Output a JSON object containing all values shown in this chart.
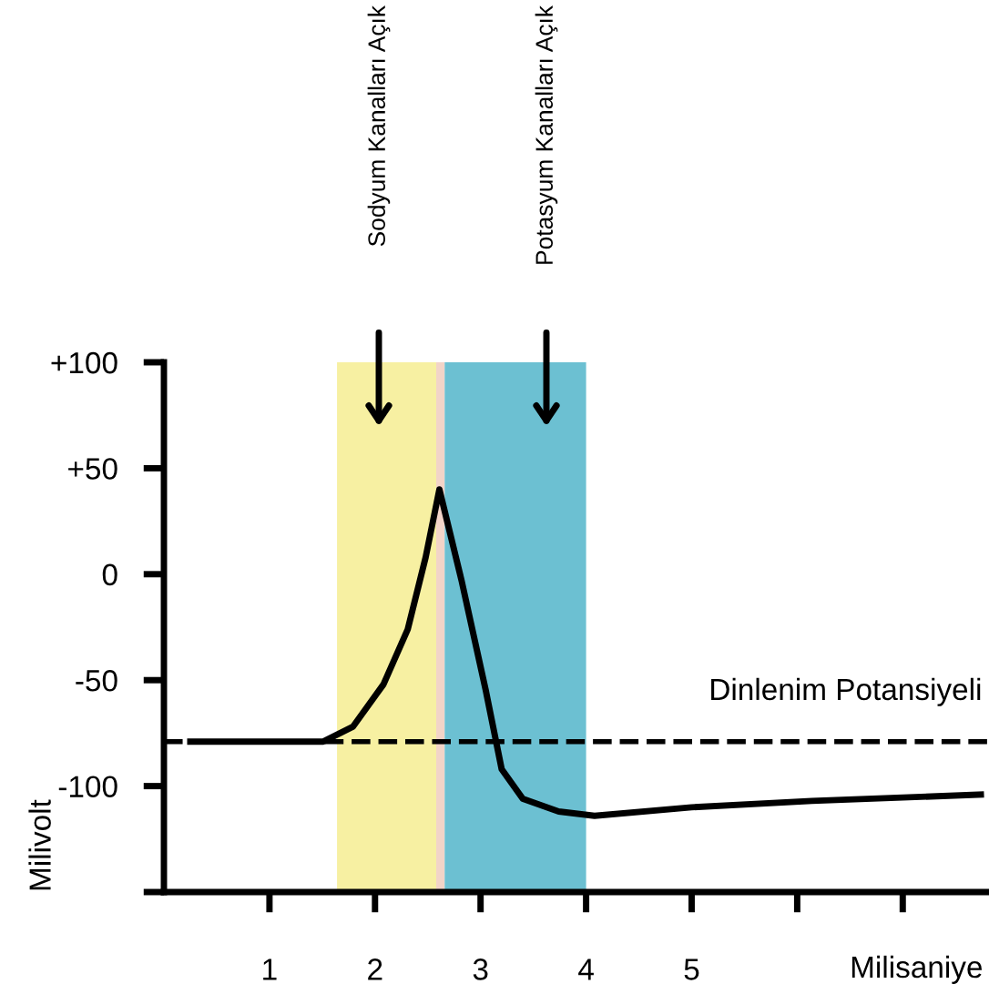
{
  "chart_data": {
    "type": "line",
    "xlabel": "Milisaniye",
    "ylabel": "Milivolt",
    "x": [
      0.25,
      1.51,
      1.79,
      2.08,
      2.31,
      2.48,
      2.61,
      2.82,
      3.05,
      3.2,
      3.4,
      3.74,
      4.08,
      5.0,
      6.14,
      7.74
    ],
    "series": [
      {
        "color": "#000000",
        "values": [
          -79,
          -79,
          -72,
          -52,
          -26,
          8,
          40,
          -3,
          -55,
          -92,
          -106,
          -112,
          -114,
          -110,
          -107,
          -104
        ]
      }
    ],
    "xlim": [
      0,
      7.8
    ],
    "ylim": [
      -150,
      100
    ],
    "xticks": [
      1,
      2,
      3,
      4,
      5,
      {
        "value": 6,
        "label": null
      },
      {
        "value": 7,
        "label": null
      }
    ],
    "yticks": [
      {
        "value": -150,
        "label": null
      },
      {
        "value": -100,
        "label": "-100"
      },
      {
        "value": -50,
        "label": "-50"
      },
      0,
      {
        "value": 50,
        "label": "+50"
      },
      {
        "value": 100,
        "label": "+100"
      }
    ],
    "bands": [
      {
        "axis": "x",
        "from": 1.64,
        "to": 2.58,
        "color": "#f7f0a2"
      },
      {
        "axis": "x",
        "from": 2.58,
        "to": 2.66,
        "color": "#f2d4c8"
      },
      {
        "axis": "x",
        "from": 2.66,
        "to": 4.0,
        "color": "#6cc0d2"
      }
    ],
    "ref_lines": [
      {
        "axis": "y",
        "value": -79,
        "label": "Dinlenim Potansiyeli",
        "line_style": "dashed",
        "color": "#000000"
      }
    ],
    "annotations": [
      "Sodyum Kanalları Açık",
      "Potasyum Kanalları Açık"
    ],
    "grid": false,
    "legend": false,
    "marker": "none",
    "line_style": "solid"
  }
}
